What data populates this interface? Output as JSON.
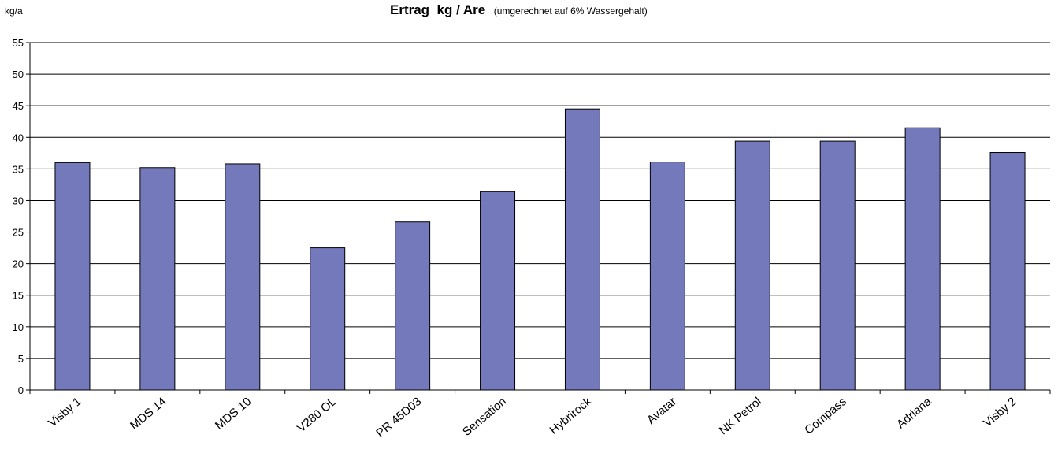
{
  "chart_data": {
    "type": "bar",
    "title": "Ertrag  kg / Are",
    "subtitle": "(umgerechnet auf 6% Wassergehalt)",
    "ylabel": "kg/a",
    "xlabel": "",
    "ylim": [
      0,
      55
    ],
    "yticks": [
      0,
      5,
      10,
      15,
      20,
      25,
      30,
      35,
      40,
      45,
      50,
      55
    ],
    "grid": true,
    "legend": "none",
    "bar_color": "#7479bb",
    "categories": [
      "Visby 1",
      "MDS 14",
      "MDS 10",
      "V280 OL",
      "PR 45D03",
      "Sensation",
      "Hybrirock",
      "Avatar",
      "NK Petrol",
      "Compass",
      "Adriana",
      "Visby 2"
    ],
    "values": [
      36.0,
      35.2,
      35.8,
      22.5,
      26.6,
      31.4,
      44.5,
      36.1,
      39.4,
      39.4,
      41.5,
      37.6
    ]
  }
}
